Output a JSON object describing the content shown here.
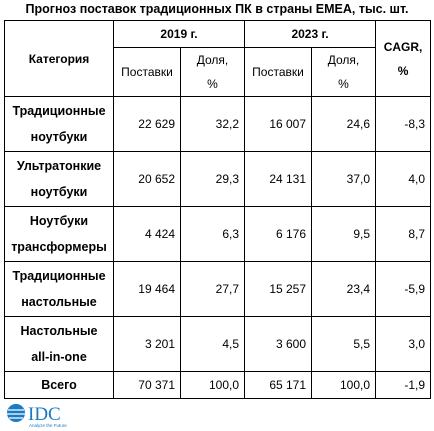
{
  "title": "Прогноз поставок традиционных ПК в страны EMEA, тыс. шт.",
  "header": {
    "category": "Категория",
    "years": [
      "2019 г.",
      "2023 г."
    ],
    "cagr": "CAGR, %",
    "subheaders": [
      "Поставки",
      "Доля, %",
      "Поставки",
      "Доля, %"
    ]
  },
  "rows": [
    {
      "category": "Традиционные ноутбуки",
      "cells": [
        "22 629",
        "32,2",
        "16 007",
        "24,6",
        "-8,3"
      ]
    },
    {
      "category": "Ультратонкие ноутбуки",
      "cells": [
        "20 652",
        "29,3",
        "24 131",
        "37,0",
        "4,0"
      ]
    },
    {
      "category": "Ноутбуки трансформеры",
      "cells": [
        "4 424",
        "6,3",
        "6 176",
        "9,5",
        "8,7"
      ]
    },
    {
      "category": "Традиционные настольные",
      "cells": [
        "19 464",
        "27,7",
        "15 257",
        "23,4",
        "-5,9"
      ]
    },
    {
      "category": "Настольные all-in-one",
      "cells": [
        "3 201",
        "4,5",
        "3 600",
        "5,5",
        "3,0"
      ]
    },
    {
      "category": "Всего",
      "cells": [
        "70 371",
        "100,0",
        "65 171",
        "100,0",
        "-1,9"
      ]
    }
  ],
  "footer": {
    "logo": "IDC",
    "tagline": "Analyze the Future"
  }
}
